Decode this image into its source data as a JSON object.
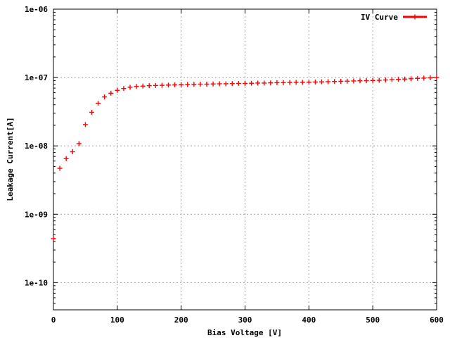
{
  "chart_data": {
    "type": "scatter",
    "title": "",
    "xlabel": "Bias Voltage [V]",
    "ylabel": "Leakage Current[A]",
    "xlim": [
      0,
      600
    ],
    "ylim": [
      4e-11,
      1e-06
    ],
    "y_scale": "log",
    "grid": true,
    "legend_position": "top-right",
    "x_ticks": [
      0,
      100,
      200,
      300,
      400,
      500,
      600
    ],
    "x_tick_labels": [
      "0",
      "100",
      "200",
      "300",
      "400",
      "500",
      "600"
    ],
    "y_ticks": [
      1e-10,
      1e-09,
      1e-08,
      1e-07,
      1e-06
    ],
    "y_tick_labels": [
      "1e-10",
      "1e-09",
      "1e-08",
      "1e-07",
      "1e-06"
    ],
    "series": [
      {
        "name": "IV Curve",
        "color": "#ff0000",
        "marker": "plus",
        "x": [
          0,
          10,
          20,
          30,
          40,
          50,
          60,
          70,
          80,
          90,
          100,
          110,
          120,
          130,
          140,
          150,
          160,
          170,
          180,
          190,
          200,
          210,
          220,
          230,
          240,
          250,
          260,
          270,
          280,
          290,
          300,
          310,
          320,
          330,
          340,
          350,
          360,
          370,
          380,
          390,
          400,
          410,
          420,
          430,
          440,
          450,
          460,
          470,
          480,
          490,
          500,
          510,
          520,
          530,
          540,
          550,
          560,
          570,
          580,
          590,
          600
        ],
        "y": [
          4.4e-10,
          4.7e-09,
          6.5e-09,
          8.2e-09,
          1.08e-08,
          2.05e-08,
          3.1e-08,
          4.2e-08,
          5.2e-08,
          5.9e-08,
          6.5e-08,
          6.9e-08,
          7.2e-08,
          7.4e-08,
          7.5e-08,
          7.6e-08,
          7.65e-08,
          7.7e-08,
          7.75e-08,
          7.8e-08,
          7.85e-08,
          7.9e-08,
          7.95e-08,
          8e-08,
          8e-08,
          8.05e-08,
          8.1e-08,
          8.1e-08,
          8.15e-08,
          8.2e-08,
          8.2e-08,
          8.25e-08,
          8.3e-08,
          8.3e-08,
          8.35e-08,
          8.4e-08,
          8.4e-08,
          8.45e-08,
          8.5e-08,
          8.5e-08,
          8.55e-08,
          8.6e-08,
          8.65e-08,
          8.7e-08,
          8.75e-08,
          8.8e-08,
          8.85e-08,
          8.9e-08,
          8.95e-08,
          9e-08,
          9.05e-08,
          9.1e-08,
          9.2e-08,
          9.3e-08,
          9.4e-08,
          9.5e-08,
          9.6e-08,
          9.7e-08,
          9.8e-08,
          9.9e-08,
          1e-07
        ]
      }
    ]
  }
}
